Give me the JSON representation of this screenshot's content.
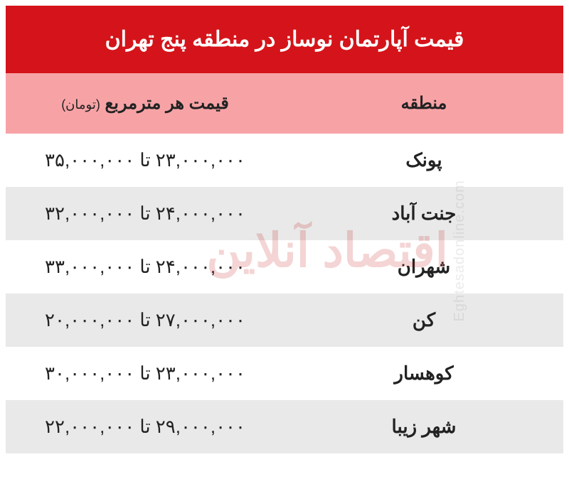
{
  "title": "قیمت آپارتمان نوساز در منطقه پنج تهران",
  "columns": {
    "region": "منطقه",
    "price": "قیمت هر مترمربع",
    "unit": "(تومان)"
  },
  "rows": [
    {
      "region": "پونک",
      "price": "۲۳,۰۰۰,۰۰۰ تا ۳۵,۰۰۰,۰۰۰"
    },
    {
      "region": "جنت آباد",
      "price": "۲۴,۰۰۰,۰۰۰ تا ۳۲,۰۰۰,۰۰۰"
    },
    {
      "region": "شهران",
      "price": "۲۴,۰۰۰,۰۰۰ تا ۳۳,۰۰۰,۰۰۰"
    },
    {
      "region": "کن",
      "price": "۲۷,۰۰۰,۰۰۰ تا ۲۰,۰۰۰,۰۰۰"
    },
    {
      "region": "کوهسار",
      "price": "۲۳,۰۰۰,۰۰۰ تا ۳۰,۰۰۰,۰۰۰"
    },
    {
      "region": "شهر زیبا",
      "price": "۲۹,۰۰۰,۰۰۰ تا ۲۲,۰۰۰,۰۰۰"
    }
  ],
  "row_colors": {
    "even": "#ffffff",
    "odd": "#e9e9e9"
  },
  "title_bg": "#d4141a",
  "title_color": "#ffffff",
  "header_bg": "#f7a3a6",
  "watermark": {
    "fa": "اقتصاد آنلاین",
    "en": "Eghtesadonline.com"
  }
}
